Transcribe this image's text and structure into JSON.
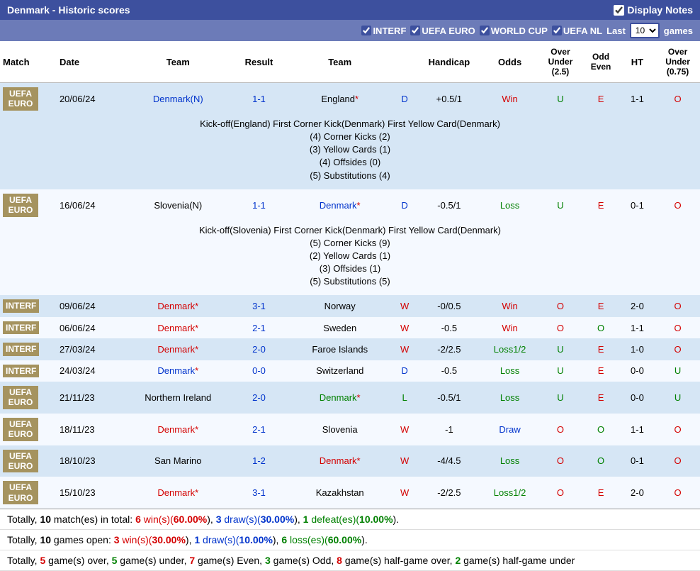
{
  "header": {
    "title": "Denmark - Historic scores",
    "display_notes_label": "Display Notes",
    "display_notes_checked": true
  },
  "filters": {
    "interf": {
      "label": "INTERF",
      "checked": true
    },
    "uefa_euro": {
      "label": "UEFA EURO",
      "checked": true
    },
    "world_cup": {
      "label": "WORLD CUP",
      "checked": true
    },
    "uefa_nl": {
      "label": "UEFA NL",
      "checked": true
    },
    "last_label": "Last",
    "games_label": "games",
    "games_count": "10"
  },
  "columns": {
    "match": "Match",
    "date": "Date",
    "team1": "Team",
    "result": "Result",
    "team2": "Team",
    "handicap": "Handicap",
    "odds": "Odds",
    "ou25": "Over Under (2.5)",
    "oddeven": "Odd Even",
    "ht": "HT",
    "ou075": "Over Under (0.75)"
  },
  "rows": [
    {
      "comp": "UEFA EURO",
      "date": "20/06/24",
      "team1": "Denmark",
      "team1_suffix": "(N)",
      "team1_color": "blue",
      "result": "1-1",
      "result_color": "blue",
      "team2": "England",
      "team2_suffix": "*",
      "team2_color": "black",
      "team2_suffix_color": "red",
      "wdl": "D",
      "wdl_color": "blue",
      "handicap": "+0.5/1",
      "odds": "Win",
      "odds_color": "red",
      "ou25": "U",
      "ou25_color": "green",
      "oe": "E",
      "oe_color": "red",
      "ht": "1-1",
      "ou075": "O",
      "ou075_color": "red",
      "row_class": "row-dark",
      "notes": "Kick-off(England)  First Corner Kick(Denmark)  First Yellow Card(Denmark)\n(4) Corner Kicks (2)\n(3) Yellow Cards (1)\n(4) Offsides (0)\n(5) Substitutions (4)"
    },
    {
      "comp": "UEFA EURO",
      "date": "16/06/24",
      "team1": "Slovenia",
      "team1_suffix": "(N)",
      "team1_color": "black",
      "result": "1-1",
      "result_color": "blue",
      "team2": "Denmark",
      "team2_suffix": "*",
      "team2_color": "blue",
      "team2_suffix_color": "red",
      "wdl": "D",
      "wdl_color": "blue",
      "handicap": "-0.5/1",
      "odds": "Loss",
      "odds_color": "green",
      "ou25": "U",
      "ou25_color": "green",
      "oe": "E",
      "oe_color": "red",
      "ht": "0-1",
      "ou075": "O",
      "ou075_color": "red",
      "row_class": "row-light",
      "notes": "Kick-off(Slovenia)  First Corner Kick(Denmark)  First Yellow Card(Denmark)\n(5) Corner Kicks (9)\n(2) Yellow Cards (1)\n(3) Offsides (1)\n(5) Substitutions (5)"
    },
    {
      "comp": "INTERF",
      "date": "09/06/24",
      "team1": "Denmark",
      "team1_suffix": "*",
      "team1_color": "red",
      "team1_suffix_color": "red",
      "result": "3-1",
      "result_color": "blue",
      "team2": "Norway",
      "team2_suffix": "",
      "team2_color": "black",
      "wdl": "W",
      "wdl_color": "red",
      "handicap": "-0/0.5",
      "odds": "Win",
      "odds_color": "red",
      "ou25": "O",
      "ou25_color": "red",
      "oe": "E",
      "oe_color": "red",
      "ht": "2-0",
      "ou075": "O",
      "ou075_color": "red",
      "row_class": "row-dark"
    },
    {
      "comp": "INTERF",
      "date": "06/06/24",
      "team1": "Denmark",
      "team1_suffix": "*",
      "team1_color": "red",
      "team1_suffix_color": "red",
      "result": "2-1",
      "result_color": "blue",
      "team2": "Sweden",
      "team2_suffix": "",
      "team2_color": "black",
      "wdl": "W",
      "wdl_color": "red",
      "handicap": "-0.5",
      "odds": "Win",
      "odds_color": "red",
      "ou25": "O",
      "ou25_color": "red",
      "oe": "O",
      "oe_color": "green",
      "ht": "1-1",
      "ou075": "O",
      "ou075_color": "red",
      "row_class": "row-light"
    },
    {
      "comp": "INTERF",
      "date": "27/03/24",
      "team1": "Denmark",
      "team1_suffix": "*",
      "team1_color": "red",
      "team1_suffix_color": "red",
      "result": "2-0",
      "result_color": "blue",
      "team2": "Faroe Islands",
      "team2_suffix": "",
      "team2_color": "black",
      "wdl": "W",
      "wdl_color": "red",
      "handicap": "-2/2.5",
      "odds": "Loss1/2",
      "odds_color": "green",
      "ou25": "U",
      "ou25_color": "green",
      "oe": "E",
      "oe_color": "red",
      "ht": "1-0",
      "ou075": "O",
      "ou075_color": "red",
      "row_class": "row-dark"
    },
    {
      "comp": "INTERF",
      "date": "24/03/24",
      "team1": "Denmark",
      "team1_suffix": "*",
      "team1_color": "blue",
      "team1_suffix_color": "red",
      "result": "0-0",
      "result_color": "blue",
      "team2": "Switzerland",
      "team2_suffix": "",
      "team2_color": "black",
      "wdl": "D",
      "wdl_color": "blue",
      "handicap": "-0.5",
      "odds": "Loss",
      "odds_color": "green",
      "ou25": "U",
      "ou25_color": "green",
      "oe": "E",
      "oe_color": "red",
      "ht": "0-0",
      "ou075": "U",
      "ou075_color": "green",
      "row_class": "row-light"
    },
    {
      "comp": "UEFA EURO",
      "date": "21/11/23",
      "team1": "Northern Ireland",
      "team1_suffix": "",
      "team1_color": "black",
      "result": "2-0",
      "result_color": "blue",
      "team2": "Denmark",
      "team2_suffix": "*",
      "team2_color": "green",
      "team2_suffix_color": "red",
      "wdl": "L",
      "wdl_color": "green",
      "handicap": "-0.5/1",
      "odds": "Loss",
      "odds_color": "green",
      "ou25": "U",
      "ou25_color": "green",
      "oe": "E",
      "oe_color": "red",
      "ht": "0-0",
      "ou075": "U",
      "ou075_color": "green",
      "row_class": "row-dark"
    },
    {
      "comp": "UEFA EURO",
      "date": "18/11/23",
      "team1": "Denmark",
      "team1_suffix": "*",
      "team1_color": "red",
      "team1_suffix_color": "red",
      "result": "2-1",
      "result_color": "blue",
      "team2": "Slovenia",
      "team2_suffix": "",
      "team2_color": "black",
      "wdl": "W",
      "wdl_color": "red",
      "handicap": "-1",
      "odds": "Draw",
      "odds_color": "blue",
      "ou25": "O",
      "ou25_color": "red",
      "oe": "O",
      "oe_color": "green",
      "ht": "1-1",
      "ou075": "O",
      "ou075_color": "red",
      "row_class": "row-light"
    },
    {
      "comp": "UEFA EURO",
      "date": "18/10/23",
      "team1": "San Marino",
      "team1_suffix": "",
      "team1_color": "black",
      "result": "1-2",
      "result_color": "blue",
      "team2": "Denmark",
      "team2_suffix": "*",
      "team2_color": "red",
      "team2_suffix_color": "red",
      "wdl": "W",
      "wdl_color": "red",
      "handicap": "-4/4.5",
      "odds": "Loss",
      "odds_color": "green",
      "ou25": "O",
      "ou25_color": "red",
      "oe": "O",
      "oe_color": "green",
      "ht": "0-1",
      "ou075": "O",
      "ou075_color": "red",
      "row_class": "row-dark"
    },
    {
      "comp": "UEFA EURO",
      "date": "15/10/23",
      "team1": "Denmark",
      "team1_suffix": "*",
      "team1_color": "red",
      "team1_suffix_color": "red",
      "result": "3-1",
      "result_color": "blue",
      "team2": "Kazakhstan",
      "team2_suffix": "",
      "team2_color": "black",
      "wdl": "W",
      "wdl_color": "red",
      "handicap": "-2/2.5",
      "odds": "Loss1/2",
      "odds_color": "green",
      "ou25": "O",
      "ou25_color": "red",
      "oe": "E",
      "oe_color": "red",
      "ht": "2-0",
      "ou075": "O",
      "ou075_color": "red",
      "row_class": "row-light"
    }
  ],
  "summary": {
    "line1_pre": "Totally, ",
    "line1_total": "10",
    "line1_total_txt": " match(es) in total: ",
    "line1_w": "6",
    "line1_w_txt": " win(s)(",
    "line1_w_pct": "60.00%",
    "line1_w_end": "), ",
    "line1_d": "3",
    "line1_d_txt": " draw(s)(",
    "line1_d_pct": "30.00%",
    "line1_d_end": "), ",
    "line1_l": "1",
    "line1_l_txt": " defeat(es)(",
    "line1_l_pct": "10.00%",
    "line1_l_end": ").",
    "line2_pre": "Totally, ",
    "line2_total": "10",
    "line2_total_txt": " games open: ",
    "line2_w": "3",
    "line2_w_txt": " win(s)(",
    "line2_w_pct": "30.00%",
    "line2_w_end": "), ",
    "line2_d": "1",
    "line2_d_txt": " draw(s)(",
    "line2_d_pct": "10.00%",
    "line2_d_end": "), ",
    "line2_l": "6",
    "line2_l_txt": " loss(es)(",
    "line2_l_pct": "60.00%",
    "line2_l_end": ").",
    "line3_pre": "Totally, ",
    "line3_a": "5",
    "line3_a_txt": " game(s) over, ",
    "line3_b": "5",
    "line3_b_txt": " game(s) under, ",
    "line3_c": "7",
    "line3_c_txt": " game(s) Even, ",
    "line3_d": "3",
    "line3_d_txt": " game(s) Odd, ",
    "line3_e": "8",
    "line3_e_txt": " game(s) half-game over, ",
    "line3_f": "2",
    "line3_f_txt": " game(s) half-game under"
  }
}
